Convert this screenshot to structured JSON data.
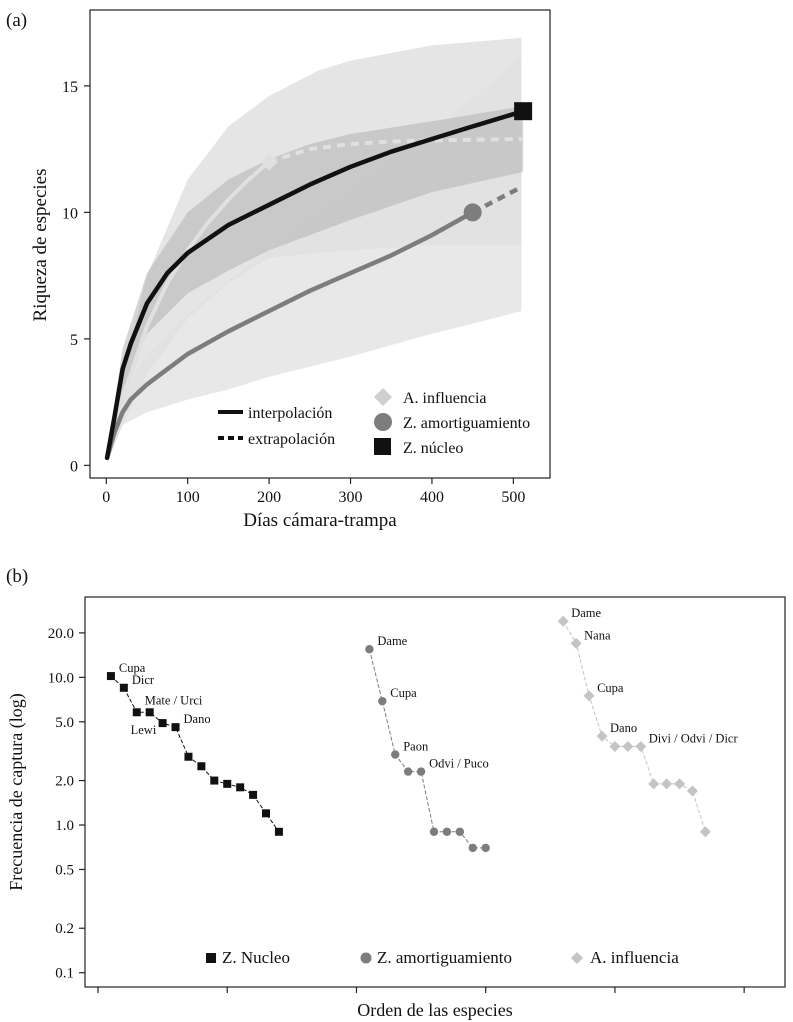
{
  "colors": {
    "nucleo": "#111111",
    "amortiguamiento": "#7d7d7d",
    "influencia": "#c4c4c4",
    "ribbon_light": "#e0e0e0",
    "ribbon_mid": "#cdcdcd",
    "ribbon_dark": "#b3b3b3"
  },
  "chart_data": [
    {
      "panel_label": "(a)",
      "type": "line",
      "title": "",
      "xlabel": "Días cámara-trampa",
      "ylabel": "Riqueza de especies",
      "xlim": [
        -20,
        545
      ],
      "ylim": [
        -0.5,
        18
      ],
      "xticks": [
        0,
        100,
        200,
        300,
        400,
        500
      ],
      "yticks": [
        0,
        5,
        10,
        15
      ],
      "xtick_labels": [
        "0",
        "100",
        "200",
        "300",
        "400",
        "500"
      ],
      "ytick_labels": [
        "0",
        "5",
        "10",
        "15"
      ],
      "series": [
        {
          "name": "A. influencia",
          "key": "influencia",
          "marker": "diamond",
          "ref_point": [
            200,
            12.0
          ],
          "interpolation": [
            [
              1,
              0.3
            ],
            [
              10,
              1.6
            ],
            [
              20,
              2.7
            ],
            [
              30,
              3.6
            ],
            [
              50,
              5.5
            ],
            [
              75,
              7.2
            ],
            [
              100,
              8.5
            ],
            [
              125,
              9.6
            ],
            [
              150,
              10.5
            ],
            [
              175,
              11.3
            ],
            [
              200,
              12.0
            ]
          ],
          "extrapolation": [
            [
              200,
              12.0
            ],
            [
              250,
              12.5
            ],
            [
              300,
              12.7
            ],
            [
              350,
              12.8
            ],
            [
              400,
              12.85
            ],
            [
              450,
              12.87
            ],
            [
              510,
              12.9
            ]
          ],
          "lower": [
            [
              1,
              0.1
            ],
            [
              20,
              1.6
            ],
            [
              50,
              3.6
            ],
            [
              100,
              5.8
            ],
            [
              150,
              7.2
            ],
            [
              200,
              8.2
            ],
            [
              260,
              8.4
            ],
            [
              300,
              8.5
            ],
            [
              400,
              8.7
            ],
            [
              510,
              8.7
            ]
          ],
          "upper": [
            [
              1,
              0.6
            ],
            [
              20,
              3.6
            ],
            [
              50,
              7.5
            ],
            [
              100,
              11.3
            ],
            [
              150,
              13.4
            ],
            [
              200,
              14.6
            ],
            [
              260,
              15.6
            ],
            [
              300,
              16.0
            ],
            [
              400,
              16.6
            ],
            [
              510,
              16.9
            ]
          ]
        },
        {
          "name": "Z. amortiguamiento",
          "key": "amortiguamiento",
          "marker": "circle",
          "ref_point": [
            450,
            10.0
          ],
          "interpolation": [
            [
              1,
              0.3
            ],
            [
              10,
              1.3
            ],
            [
              20,
              2.1
            ],
            [
              30,
              2.6
            ],
            [
              50,
              3.2
            ],
            [
              75,
              3.8
            ],
            [
              100,
              4.4
            ],
            [
              150,
              5.3
            ],
            [
              200,
              6.1
            ],
            [
              250,
              6.9
            ],
            [
              300,
              7.6
            ],
            [
              350,
              8.3
            ],
            [
              400,
              9.1
            ],
            [
              450,
              10.0
            ]
          ],
          "extrapolation": [
            [
              450,
              10.0
            ],
            [
              480,
              10.5
            ],
            [
              510,
              11.0
            ]
          ],
          "lower": [
            [
              1,
              0.1
            ],
            [
              20,
              1.6
            ],
            [
              50,
              2.1
            ],
            [
              100,
              2.6
            ],
            [
              150,
              3.0
            ],
            [
              200,
              3.5
            ],
            [
              300,
              4.3
            ],
            [
              400,
              5.2
            ],
            [
              450,
              5.6
            ],
            [
              510,
              6.1
            ]
          ],
          "upper": [
            [
              1,
              0.5
            ],
            [
              20,
              2.8
            ],
            [
              50,
              4.4
            ],
            [
              100,
              6.0
            ],
            [
              150,
              7.3
            ],
            [
              200,
              8.5
            ],
            [
              300,
              10.8
            ],
            [
              400,
              13.2
            ],
            [
              450,
              14.5
            ],
            [
              510,
              16.2
            ]
          ]
        },
        {
          "name": "Z. núcleo",
          "key": "nucleo",
          "marker": "square",
          "ref_point": [
            512,
            14.0
          ],
          "interpolation": [
            [
              1,
              0.3
            ],
            [
              10,
              1.9
            ],
            [
              20,
              3.8
            ],
            [
              30,
              4.8
            ],
            [
              50,
              6.4
            ],
            [
              75,
              7.6
            ],
            [
              100,
              8.4
            ],
            [
              150,
              9.5
            ],
            [
              200,
              10.3
            ],
            [
              250,
              11.1
            ],
            [
              300,
              11.8
            ],
            [
              350,
              12.4
            ],
            [
              400,
              12.9
            ],
            [
              450,
              13.4
            ],
            [
              512,
              14.0
            ]
          ],
          "extrapolation": [],
          "lower": [
            [
              1,
              0.1
            ],
            [
              20,
              3.0
            ],
            [
              50,
              5.2
            ],
            [
              100,
              6.8
            ],
            [
              150,
              7.7
            ],
            [
              200,
              8.5
            ],
            [
              250,
              9.1
            ],
            [
              300,
              9.7
            ],
            [
              400,
              10.8
            ],
            [
              512,
              11.6
            ]
          ],
          "upper": [
            [
              1,
              0.5
            ],
            [
              20,
              4.6
            ],
            [
              50,
              7.6
            ],
            [
              100,
              10.0
            ],
            [
              150,
              11.3
            ],
            [
              200,
              12.1
            ],
            [
              250,
              12.7
            ],
            [
              300,
              13.1
            ],
            [
              400,
              13.6
            ],
            [
              512,
              14.2
            ]
          ]
        }
      ],
      "legend_lines": [
        {
          "label": "interpolación",
          "style": "solid"
        },
        {
          "label": "extrapolación",
          "style": "dashed"
        }
      ],
      "legend_position": "bottom-right"
    },
    {
      "panel_label": "(b)",
      "type": "scatter",
      "title": "",
      "xlabel": "Orden de las especies",
      "ylabel": "Frecuencia de captura (log)",
      "yscale": "log",
      "ylim": [
        0.08,
        35
      ],
      "xlim": [
        0,
        52
      ],
      "yticks": [
        0.1,
        0.2,
        0.5,
        1.0,
        2.0,
        5.0,
        10.0,
        20.0
      ],
      "ytick_labels": [
        "0.1",
        "0.2",
        "0.5",
        "1.0",
        "2.0",
        "5.0",
        "10.0",
        "20.0"
      ],
      "series": [
        {
          "name": "Z. Nucleo",
          "key": "nucleo",
          "marker": "square",
          "x": [
            1,
            2,
            3,
            4,
            5,
            6,
            7,
            8,
            9,
            10,
            11,
            12,
            13,
            14
          ],
          "values": [
            10.2,
            8.5,
            5.8,
            5.8,
            4.9,
            4.6,
            2.9,
            2.5,
            2.0,
            1.9,
            1.8,
            1.6,
            1.2,
            0.9
          ],
          "labels": [
            "Cupa",
            "Dicr",
            "Mate / Urci",
            "",
            "Lewi",
            "Dano",
            "",
            "",
            "",
            "",
            "",
            "",
            "",
            ""
          ]
        },
        {
          "name": "Z. amortiguamiento",
          "key": "amortiguamiento",
          "marker": "circle",
          "x": [
            21,
            22,
            23,
            24,
            25,
            26,
            27,
            28,
            29,
            30
          ],
          "values": [
            15.5,
            6.9,
            3.0,
            2.3,
            2.3,
            0.9,
            0.9,
            0.9,
            0.7,
            0.7
          ],
          "labels": [
            "Dame",
            "Cupa",
            "Paon",
            "",
            "Odvi / Puco",
            "",
            "",
            "",
            "",
            ""
          ]
        },
        {
          "name": "A. influencia",
          "key": "influencia",
          "marker": "diamond",
          "x": [
            36,
            37,
            38,
            39,
            40,
            41,
            42,
            43,
            44,
            45,
            46,
            47
          ],
          "values": [
            24.0,
            17.0,
            7.5,
            4.0,
            3.4,
            3.4,
            3.4,
            1.9,
            1.9,
            1.9,
            1.7,
            0.9
          ],
          "labels": [
            "Dame",
            "Nana",
            "Cupa",
            "Dano",
            "",
            "",
            "Divi / Odvi / Dicr",
            "",
            "",
            "",
            "",
            ""
          ]
        }
      ],
      "legend_position": "bottom"
    }
  ]
}
